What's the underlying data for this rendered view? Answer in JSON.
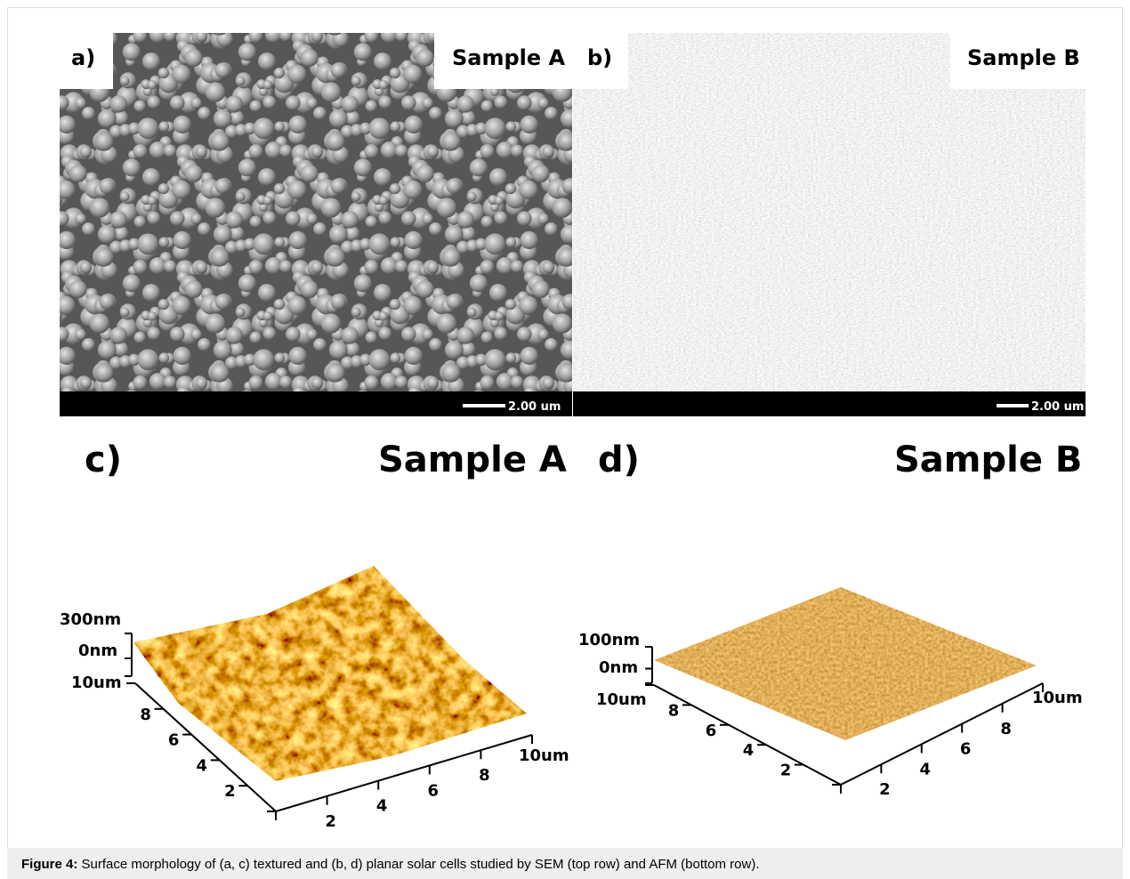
{
  "panels": [
    {
      "label": "a)",
      "sample": "Sample A",
      "scale_bar": "2.00 um"
    },
    {
      "label": "b)",
      "sample": "Sample B",
      "scale_bar": "2.00 um"
    },
    {
      "label": "c)",
      "sample": "Sample A",
      "z_top": "300nm",
      "z_zero": "0nm",
      "y_end": "10um",
      "x_end": "10um",
      "y_ticks": [
        "8",
        "6",
        "4",
        "2"
      ],
      "x_ticks": [
        "2",
        "4",
        "6",
        "8"
      ]
    },
    {
      "label": "d)",
      "sample": "Sample B",
      "z_top": "100nm",
      "z_zero": "0nm",
      "y_end": "10um",
      "x_end": "10um",
      "y_ticks": [
        "8",
        "6",
        "4",
        "2"
      ],
      "x_ticks": [
        "2",
        "4",
        "6",
        "8"
      ]
    }
  ],
  "caption": {
    "label": "Figure 4:",
    "text": " Surface morphology of (a, c) textured and (b, d) planar solar cells studied by SEM (top row) and AFM (bottom row)."
  }
}
